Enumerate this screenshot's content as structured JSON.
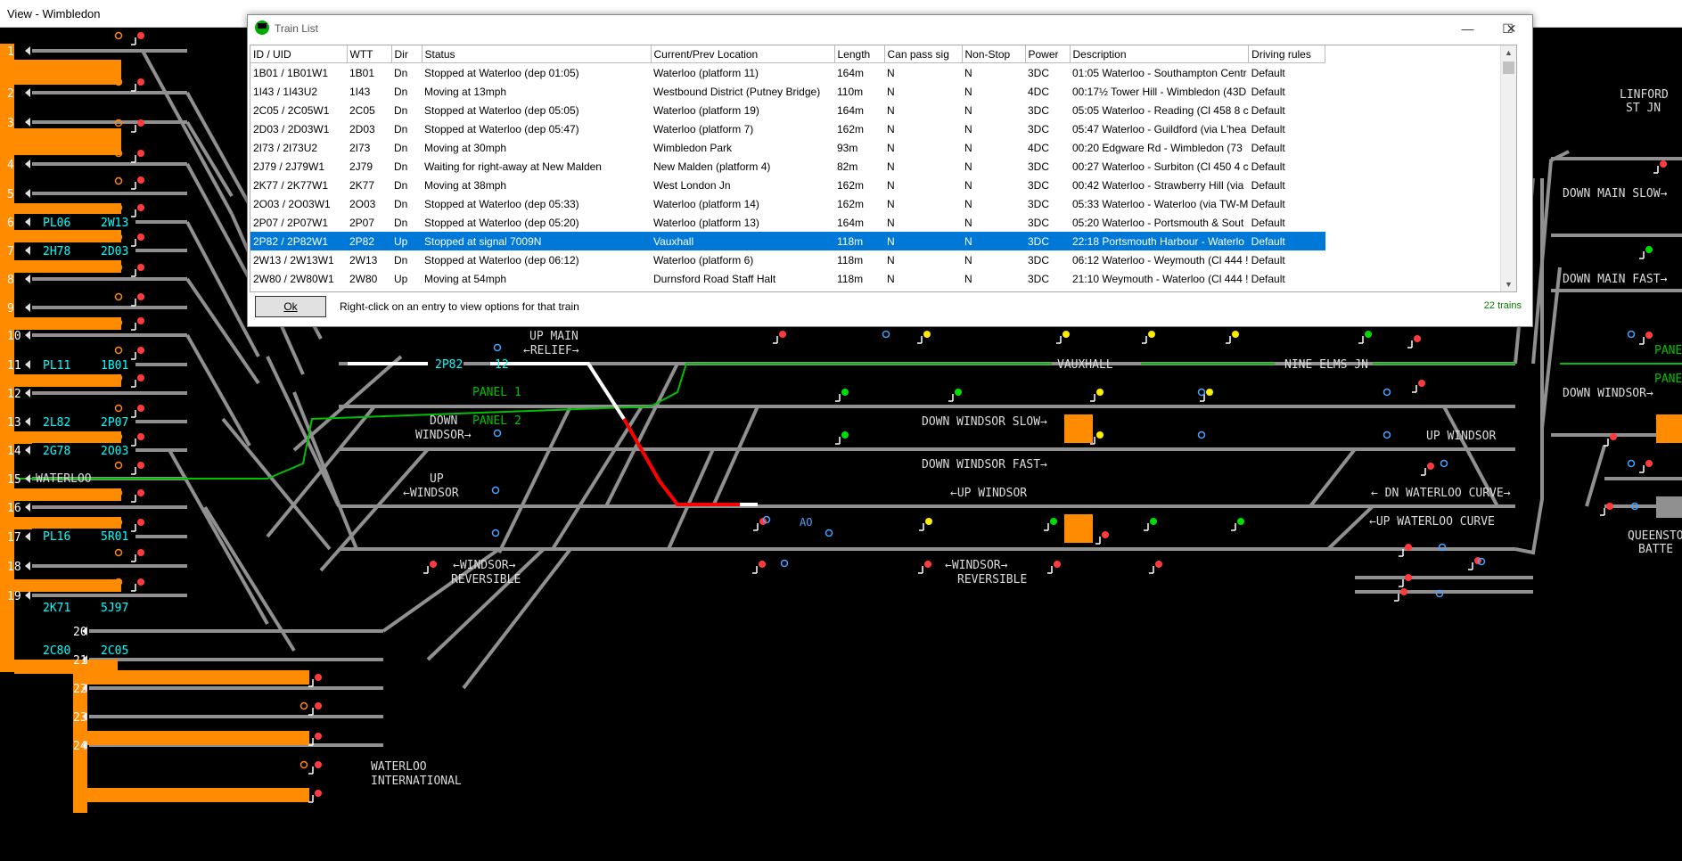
{
  "window": {
    "title": "View - Wimbledon"
  },
  "colors": {
    "track": "#909090",
    "platform": "#ff8c00",
    "set_route": "#ffffff",
    "occupied": "#ff0000",
    "panel_line": "#00c000",
    "train_id": "#00ffff",
    "label": "#dcdcdc",
    "selected_row": "#0078d7"
  },
  "panel": {
    "platform_numbers": [
      "1",
      "2",
      "3",
      "4",
      "5",
      "6",
      "7",
      "8",
      "9",
      "10",
      "11",
      "12",
      "13",
      "14",
      "15",
      "16",
      "17",
      "18",
      "19",
      "20",
      "21",
      "22",
      "23",
      "24"
    ],
    "platform_trains": [
      {
        "left": "PL06",
        "right": "2W13"
      },
      {
        "left": "2H78",
        "right": "2D03"
      },
      {
        "left": "PL11",
        "right": "1B01"
      },
      {
        "left": "2L82",
        "right": "2P07"
      },
      {
        "left": "2G78",
        "right": "2O03"
      },
      {
        "left": "PL16",
        "right": "5R01"
      },
      {
        "left": "2K71",
        "right": "5J97"
      },
      {
        "left": "2C80",
        "right": "2C05"
      }
    ],
    "waterloo_label": "WATERLOO",
    "waterloo_international": [
      "WATERLOO",
      "INTERNATIONAL"
    ],
    "up_main_relief": [
      "UP MAIN",
      "←RELIEF→"
    ],
    "panel_1": "PANEL 1",
    "panel_2": "PANEL 2",
    "down_windsor_left": [
      "DOWN",
      "WINDSOR→"
    ],
    "up_windsor_left": [
      "UP",
      "←WINDSOR"
    ],
    "windsor_reversible_left": [
      "←WINDSOR→",
      "REVERSIBLE"
    ],
    "windsor_reversible_right": [
      "←WINDSOR→",
      "REVERSIBLE"
    ],
    "train_2p82": "2P82",
    "train_12": "12",
    "vauxhall": "VAUXHALL",
    "nine_elms_jn": "NINE ELMS JN",
    "down_windsor_slow": "DOWN WINDSOR SLOW→",
    "down_windsor_fast": "DOWN WINDSOR FAST→",
    "up_windsor_mid": "←UP WINDSOR",
    "up_windsor_right": "UP WINDSOR",
    "dn_waterloo_curve": "← DN WATERLOO CURVE→",
    "up_waterloo_curve": "←UP WATERLOO CURVE",
    "linford_st_jn": [
      "LINFORD",
      "ST JN"
    ],
    "down_main_slow": "DOWN MAIN SLOW→",
    "down_main_fast": "DOWN MAIN FAST→",
    "down_windsor_far": "DOWN WINDSOR→",
    "pane_1": "PANE",
    "pane_2": "PANE",
    "queenstown": [
      "QUEENSTO",
      "BATTE"
    ],
    "ao": "AO"
  },
  "train_list": {
    "title": "Train List",
    "columns": [
      "ID / UID",
      "WTT",
      "Dir",
      "Status",
      "Current/Prev Location",
      "Length",
      "Can pass sig",
      "Non-Stop",
      "Power",
      "Description",
      "Driving rules"
    ],
    "rows": [
      [
        "1B01 / 1B01W1",
        "1B01",
        "Dn",
        "Stopped at Waterloo (dep 01:05)",
        "Waterloo (platform 11)",
        "164m",
        "N",
        "N",
        "3DC",
        "01:05 Waterloo - Southampton Centr",
        "Default"
      ],
      [
        "1I43 / 1I43U2",
        "1I43",
        "Dn",
        "Moving at 13mph",
        "Westbound District (Putney Bridge)",
        "110m",
        "N",
        "N",
        "4DC",
        "00:17½ Tower Hill - Wimbledon (43D",
        "Default"
      ],
      [
        "2C05 / 2C05W1",
        "2C05",
        "Dn",
        "Stopped at Waterloo (dep 05:05)",
        "Waterloo (platform 19)",
        "164m",
        "N",
        "N",
        "3DC",
        "05:05 Waterloo - Reading (Cl 458 8 c",
        "Default"
      ],
      [
        "2D03 / 2D03W1",
        "2D03",
        "Dn",
        "Stopped at Waterloo (dep 05:47)",
        "Waterloo (platform 7)",
        "162m",
        "N",
        "N",
        "3DC",
        "05:47 Waterloo - Guildford (via L'hea",
        "Default"
      ],
      [
        "2I73 / 2I73U2",
        "2I73",
        "Dn",
        "Moving at 30mph",
        "Wimbledon Park",
        "93m",
        "N",
        "N",
        "4DC",
        "00:20 Edgware Rd - Wimbledon (73",
        "Default"
      ],
      [
        "2J79 / 2J79W1",
        "2J79",
        "Dn",
        "Waiting for right-away at New Malden",
        "New Malden (platform 4)",
        "82m",
        "N",
        "N",
        "3DC",
        "00:27 Waterloo - Surbiton (Cl 450 4 c",
        "Default"
      ],
      [
        "2K77 / 2K77W1",
        "2K77",
        "Dn",
        "Moving at 38mph",
        "West London Jn",
        "162m",
        "N",
        "N",
        "3DC",
        "00:42 Waterloo - Strawberry Hill (via",
        "Default"
      ],
      [
        "2O03 / 2O03W1",
        "2O03",
        "Dn",
        "Stopped at Waterloo (dep 05:33)",
        "Waterloo (platform 14)",
        "162m",
        "N",
        "N",
        "3DC",
        "05:33 Waterloo - Waterloo (via TW-M",
        "Default"
      ],
      [
        "2P07 / 2P07W1",
        "2P07",
        "Dn",
        "Stopped at Waterloo (dep 05:20)",
        "Waterloo (platform 13)",
        "164m",
        "N",
        "N",
        "3DC",
        "05:20 Waterloo - Portsmouth & Sout",
        "Default"
      ],
      [
        "2P82 / 2P82W1",
        "2P82",
        "Up",
        "Stopped at signal 7009N",
        "Vauxhall",
        "118m",
        "N",
        "N",
        "3DC",
        "22:18 Portsmouth Harbour - Waterlo",
        "Default"
      ],
      [
        "2W13 / 2W13W1",
        "2W13",
        "Dn",
        "Stopped at Waterloo (dep 06:12)",
        "Waterloo (platform 6)",
        "118m",
        "N",
        "N",
        "3DC",
        "06:12 Waterloo - Weymouth (Cl 444 !",
        "Default"
      ],
      [
        "2W80 / 2W80W1",
        "2W80",
        "Up",
        "Moving at 54mph",
        "Durnsford Road Staff Halt",
        "118m",
        "N",
        "N",
        "3DC",
        "21:10 Weymouth - Waterloo (Cl 444 !",
        "Default"
      ]
    ],
    "ok_label": "Ok",
    "hint": "Right-click on an entry to view options for that train",
    "count": "22 trains"
  }
}
